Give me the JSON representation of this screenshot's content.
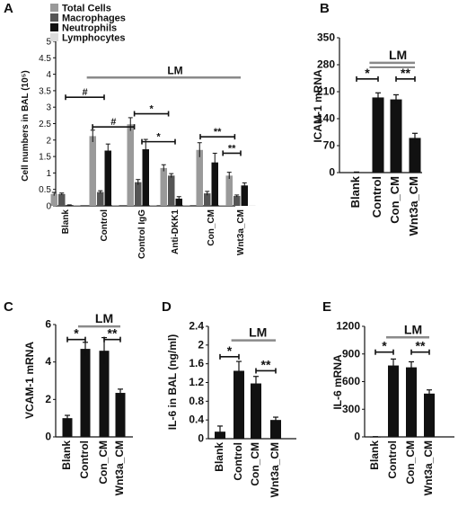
{
  "chart_data": [
    {
      "panel": "A",
      "type": "bar",
      "ylabel": "Cell numbers in BAL (10⁵)",
      "ylim": [
        0,
        5
      ],
      "yticks": [
        "0",
        "0.5",
        "1",
        "1.5",
        "2",
        "2.5",
        "3",
        "3.5",
        "4",
        "4.5",
        "5"
      ],
      "categories": [
        "Blank",
        "Control",
        "Control IgG",
        "Anti-DKK1",
        "Con_CM",
        "Wnt3a_CM"
      ],
      "series": [
        {
          "name": "Total Cells",
          "color": "#9a9a9a",
          "values": [
            0.36,
            2.12,
            2.48,
            1.15,
            1.7,
            0.92
          ],
          "errors": [
            0.05,
            0.18,
            0.2,
            0.1,
            0.22,
            0.1
          ]
        },
        {
          "name": "Macrophages",
          "color": "#555555",
          "values": [
            0.36,
            0.42,
            0.72,
            0.92,
            0.38,
            0.3
          ],
          "errors": [
            0.03,
            0.04,
            0.08,
            0.06,
            0.06,
            0.03
          ]
        },
        {
          "name": "Neutrophils",
          "color": "#111111",
          "values": [
            0.02,
            1.68,
            1.72,
            0.22,
            1.32,
            0.62
          ],
          "errors": [
            0.01,
            0.2,
            0.3,
            0.06,
            0.28,
            0.08
          ]
        },
        {
          "name": "Lymphocytes",
          "color": "#dcdcdc",
          "values": [
            0.01,
            0.01,
            0.01,
            0.01,
            0.01,
            0.01
          ],
          "errors": [
            0,
            0,
            0,
            0,
            0,
            0
          ]
        }
      ],
      "annotations": [
        "#",
        "#",
        "*",
        "*",
        "**",
        "**"
      ],
      "bracket_label": "LM"
    },
    {
      "panel": "B",
      "type": "bar",
      "ylabel": "ICAM-1 mRNA",
      "ylim": [
        0,
        350
      ],
      "yticks": [
        "0",
        "70",
        "140",
        "210",
        "280",
        "350"
      ],
      "categories": [
        "Blank",
        "Control",
        "Con_CM",
        "Wnt3a_CM"
      ],
      "values": [
        1,
        195,
        190,
        90
      ],
      "errors": [
        0.5,
        12,
        12,
        12
      ],
      "annotations": [
        "*",
        "**"
      ],
      "bracket_label": "LM"
    },
    {
      "panel": "C",
      "type": "bar",
      "ylabel": "VCAM-1 mRNA",
      "ylim": [
        0,
        6
      ],
      "yticks": [
        "0",
        "2",
        "4",
        "6"
      ],
      "categories": [
        "Blank",
        "Control",
        "Con_CM",
        "Wnt3a_CM"
      ],
      "values": [
        1.0,
        4.7,
        4.6,
        2.35
      ],
      "errors": [
        0.15,
        0.35,
        0.7,
        0.2
      ],
      "annotations": [
        "*",
        "**"
      ],
      "bracket_label": "LM"
    },
    {
      "panel": "D",
      "type": "bar",
      "ylabel": "IL-6 in BAL (ng/ml)",
      "ylim": [
        0,
        2.4
      ],
      "yticks": [
        "0",
        "0.4",
        "0.8",
        "1.2",
        "1.6",
        "2",
        "2.4"
      ],
      "categories": [
        "Blank",
        "Control",
        "Con_CM",
        "Wnt3a_CM"
      ],
      "values": [
        0.15,
        1.45,
        1.18,
        0.4
      ],
      "errors": [
        0.12,
        0.2,
        0.15,
        0.06
      ],
      "annotations": [
        "*",
        "**"
      ],
      "bracket_label": "LM"
    },
    {
      "panel": "E",
      "type": "bar",
      "ylabel": "IL-6 mRNA",
      "ylim": [
        0,
        1200
      ],
      "yticks": [
        "0",
        "300",
        "600",
        "900",
        "1200"
      ],
      "categories": [
        "Blank",
        "Control",
        "Con_CM",
        "Wnt3a_CM"
      ],
      "values": [
        2,
        775,
        755,
        470
      ],
      "errors": [
        1,
        70,
        60,
        40
      ],
      "annotations": [
        "*",
        "**"
      ],
      "bracket_label": "LM"
    }
  ],
  "palette": {
    "black_bar": "#111111",
    "lm_line": "#8a8a8a",
    "axis": "#111111"
  }
}
